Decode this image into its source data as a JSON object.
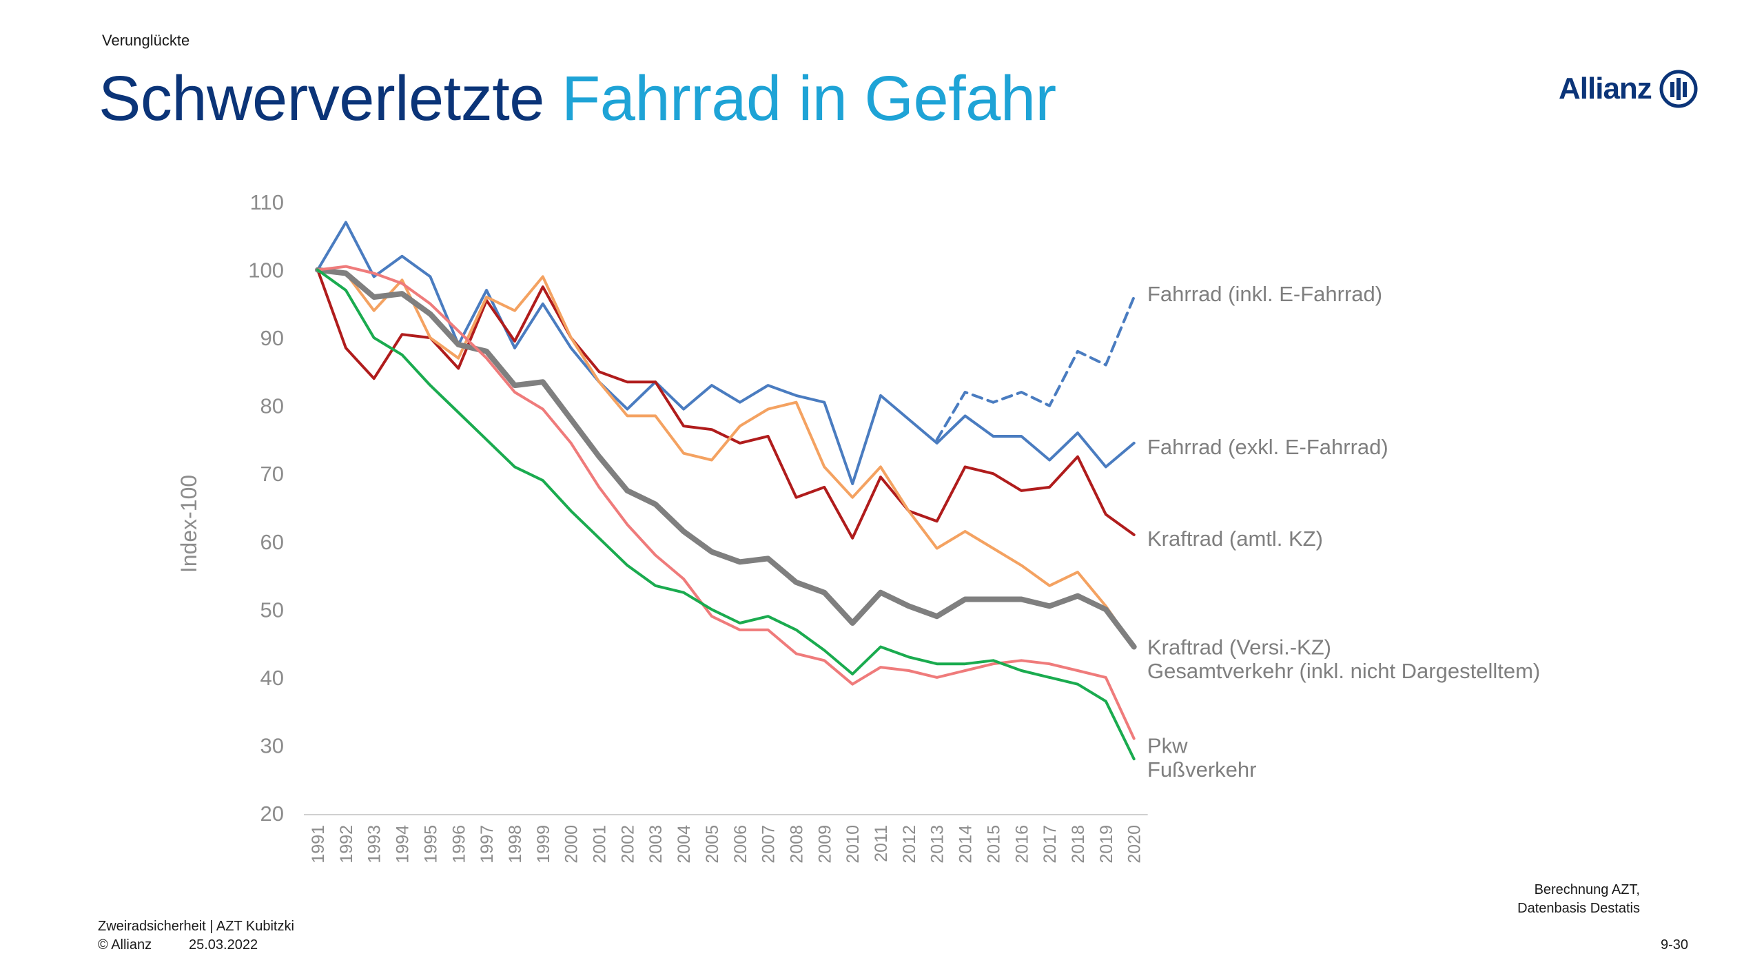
{
  "header": {
    "topic": "Verunglückte",
    "title_part1": "Schwerverletzte",
    "title_part2": "Fahrrad in Gefahr",
    "logo_text": "Allianz"
  },
  "footer": {
    "line1": "Zweiradsicherheit | AZT Kubitzki",
    "copyright": "© Allianz",
    "date": "25.03.2022",
    "page": "9-30",
    "source_line1": "Berechnung AZT,",
    "source_line2": "Datenbasis Destatis"
  },
  "colors": {
    "title_dark": "#0b3478",
    "title_light": "#1ea3d6"
  },
  "chart_data": {
    "type": "line",
    "ylabel": "Index-100",
    "xlabel": "",
    "ylim": [
      20,
      110
    ],
    "yticks": [
      20,
      30,
      40,
      50,
      60,
      70,
      80,
      90,
      100,
      110
    ],
    "grid": false,
    "x": [
      "1991",
      "1992",
      "1993",
      "1994",
      "1995",
      "1996",
      "1997",
      "1998",
      "1999",
      "2000",
      "2001",
      "2002",
      "2003",
      "2004",
      "2005",
      "2006",
      "2007",
      "2008",
      "2009",
      "2010",
      "2011",
      "2012",
      "2013",
      "2014",
      "2015",
      "2016",
      "2017",
      "2018",
      "2019",
      "2020"
    ],
    "series": [
      {
        "name": "Fahrrad (inkl. E-Fahrrad)",
        "color": "#4a7cc0",
        "dashed": true,
        "width": 4,
        "values": [
          null,
          null,
          null,
          null,
          null,
          null,
          null,
          null,
          null,
          null,
          null,
          null,
          null,
          null,
          null,
          null,
          null,
          null,
          null,
          null,
          null,
          null,
          75,
          82,
          80.5,
          82,
          80,
          88,
          86,
          96
        ]
      },
      {
        "name": "Fahrrad (exkl. E-Fahrrad)",
        "color": "#4a7cc0",
        "width": 4,
        "values": [
          100,
          107,
          99,
          102,
          99,
          89,
          97,
          88.5,
          95,
          88.5,
          83.5,
          79.5,
          83.5,
          79.5,
          83,
          80.5,
          83,
          81.5,
          80.5,
          68.5,
          81.5,
          78,
          74.5,
          78.5,
          75.5,
          75.5,
          72,
          76,
          71,
          74.5
        ]
      },
      {
        "name": "Kraftrad (amtl. KZ)",
        "color": "#b01c1c",
        "width": 4,
        "values": [
          100,
          88.5,
          84,
          90.5,
          90,
          85.5,
          95.5,
          89.5,
          97.5,
          90,
          85,
          83.5,
          83.5,
          77,
          76.5,
          74.5,
          75.5,
          66.5,
          68,
          60.5,
          69.5,
          64.5,
          63,
          71,
          70,
          67.5,
          68,
          72.5,
          64,
          61
        ]
      },
      {
        "name": "Kraftrad (Versi.-KZ)",
        "color": "#f4a261",
        "width": 4,
        "values": [
          100,
          99.5,
          94,
          98.5,
          90,
          87,
          96,
          94,
          99,
          90,
          83.5,
          78.5,
          78.5,
          73,
          72,
          77,
          79.5,
          80.5,
          71,
          66.5,
          71,
          64.5,
          59,
          61.5,
          59,
          56.5,
          53.5,
          55.5,
          50.5,
          44.5
        ]
      },
      {
        "name": "Gesamtverkehr (inkl. nicht Dargestelltem)",
        "color": "#7f7f7f",
        "width": 8,
        "values": [
          100,
          99.5,
          96,
          96.5,
          93.5,
          89,
          88,
          83,
          83.5,
          78,
          72.5,
          67.5,
          65.5,
          61.5,
          58.5,
          57,
          57.5,
          54,
          52.5,
          48,
          52.5,
          50.5,
          49,
          51.5,
          51.5,
          51.5,
          50.5,
          52,
          50,
          44.5
        ]
      },
      {
        "name": "Pkw",
        "color": "#ef7b7b",
        "width": 4,
        "values": [
          100,
          100.5,
          99.5,
          98,
          95,
          91,
          87,
          82,
          79.5,
          74.5,
          68,
          62.5,
          58,
          54.5,
          49,
          47,
          47,
          43.5,
          42.5,
          39,
          41.5,
          41,
          40,
          41,
          42,
          42.5,
          42,
          41,
          40,
          31
        ]
      },
      {
        "name": "Fußverkehr",
        "color": "#1aab4f",
        "width": 4,
        "values": [
          100,
          97,
          90,
          87.5,
          83,
          79,
          75,
          71,
          69,
          64.5,
          60.5,
          56.5,
          53.5,
          52.5,
          50,
          48,
          49,
          47,
          44,
          40.5,
          44.5,
          43,
          42,
          42,
          42.5,
          41,
          40,
          39,
          36.5,
          28
        ]
      }
    ],
    "labels": [
      {
        "text": "Fahrrad (inkl. E-Fahrrad)",
        "y": 96.5
      },
      {
        "text": "Fahrrad (exkl. E-Fahrrad)",
        "y": 74
      },
      {
        "text": "Kraftrad (amtl. KZ)",
        "y": 60.5
      },
      {
        "text": "Kraftrad (Versi.-KZ)",
        "y": 44.5
      },
      {
        "text": "Gesamtverkehr (inkl. nicht Dargestelltem)",
        "y": 41
      },
      {
        "text": "Pkw",
        "y": 30
      },
      {
        "text": "Fußverkehr",
        "y": 26.5
      }
    ]
  }
}
